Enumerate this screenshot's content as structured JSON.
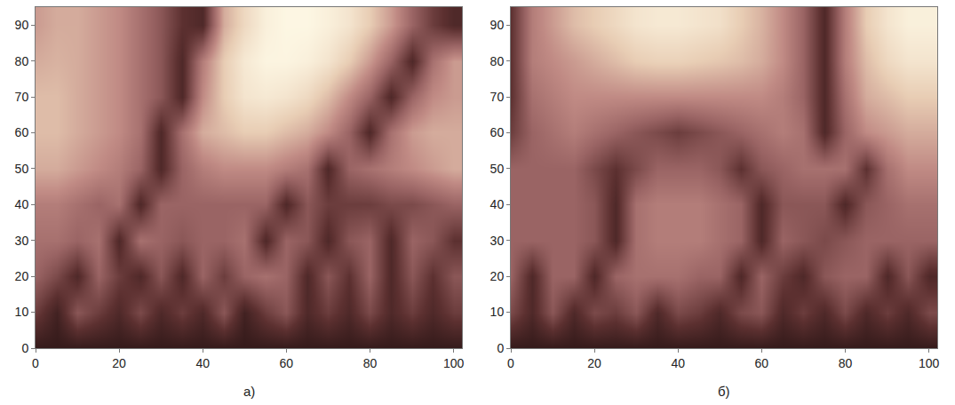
{
  "chart_data": [
    {
      "type": "heatmap",
      "title": "а)",
      "x": [
        0,
        5,
        10,
        15,
        20,
        25,
        30,
        35,
        40,
        45,
        50,
        55,
        60,
        65,
        70,
        75,
        80,
        85,
        90,
        95,
        100
      ],
      "y": [
        0,
        10,
        20,
        30,
        40,
        50,
        60,
        70,
        80,
        90
      ],
      "cells": [
        [
          0.1,
          0.1,
          0.1,
          0.1,
          0.1,
          0.1,
          0.1,
          0.1,
          0.1,
          0.1,
          0.1,
          0.1,
          0.1,
          0.1,
          0.1,
          0.1,
          0.1,
          0.1,
          0.1,
          0.1,
          0.1
        ],
        [
          0.3,
          0.15,
          0.4,
          0.3,
          0.2,
          0.35,
          0.2,
          0.3,
          0.2,
          0.4,
          0.15,
          0.3,
          0.4,
          0.2,
          0.3,
          0.2,
          0.35,
          0.2,
          0.3,
          0.2,
          0.3
        ],
        [
          0.45,
          0.35,
          0.2,
          0.45,
          0.3,
          0.2,
          0.4,
          0.2,
          0.45,
          0.3,
          0.45,
          0.5,
          0.45,
          0.2,
          0.4,
          0.25,
          0.45,
          0.2,
          0.4,
          0.25,
          0.4
        ],
        [
          0.5,
          0.5,
          0.45,
          0.5,
          0.2,
          0.5,
          0.45,
          0.4,
          0.45,
          0.45,
          0.5,
          0.2,
          0.45,
          0.4,
          0.2,
          0.4,
          0.45,
          0.2,
          0.45,
          0.4,
          0.25
        ],
        [
          0.55,
          0.55,
          0.5,
          0.45,
          0.5,
          0.2,
          0.45,
          0.45,
          0.45,
          0.45,
          0.45,
          0.45,
          0.2,
          0.4,
          0.3,
          0.3,
          0.3,
          0.35,
          0.35,
          0.4,
          0.45
        ],
        [
          0.7,
          0.7,
          0.65,
          0.6,
          0.55,
          0.45,
          0.2,
          0.45,
          0.55,
          0.6,
          0.6,
          0.6,
          0.55,
          0.5,
          0.2,
          0.45,
          0.5,
          0.55,
          0.6,
          0.65,
          0.7
        ],
        [
          0.75,
          0.75,
          0.7,
          0.65,
          0.6,
          0.5,
          0.2,
          0.5,
          0.7,
          0.75,
          0.8,
          0.8,
          0.75,
          0.7,
          0.6,
          0.45,
          0.2,
          0.5,
          0.65,
          0.7,
          0.7
        ],
        [
          0.75,
          0.75,
          0.7,
          0.65,
          0.6,
          0.5,
          0.4,
          0.2,
          0.6,
          0.8,
          0.9,
          0.92,
          0.9,
          0.85,
          0.75,
          0.6,
          0.45,
          0.2,
          0.45,
          0.6,
          0.65
        ],
        [
          0.7,
          0.72,
          0.7,
          0.65,
          0.6,
          0.5,
          0.4,
          0.2,
          0.55,
          0.8,
          0.92,
          0.97,
          0.97,
          0.95,
          0.9,
          0.8,
          0.65,
          0.45,
          0.2,
          0.5,
          0.65
        ],
        [
          0.65,
          0.7,
          0.7,
          0.65,
          0.6,
          0.5,
          0.4,
          0.25,
          0.2,
          0.7,
          0.85,
          0.95,
          0.98,
          0.98,
          0.95,
          0.9,
          0.8,
          0.65,
          0.45,
          0.3,
          0.2
        ]
      ],
      "zlim": [
        0,
        1
      ],
      "xlim": [
        0,
        102
      ],
      "ylim": [
        0,
        95
      ],
      "xticks": [
        0,
        20,
        40,
        60,
        80,
        100
      ],
      "yticks": [
        0,
        10,
        20,
        30,
        40,
        50,
        60,
        70,
        80,
        90
      ]
    },
    {
      "type": "heatmap",
      "title": "б)",
      "x": [
        0,
        5,
        10,
        15,
        20,
        25,
        30,
        35,
        40,
        45,
        50,
        55,
        60,
        65,
        70,
        75,
        80,
        85,
        90,
        95,
        100
      ],
      "y": [
        0,
        10,
        20,
        30,
        40,
        50,
        60,
        70,
        80,
        90
      ],
      "cells": [
        [
          0.1,
          0.1,
          0.1,
          0.1,
          0.1,
          0.1,
          0.1,
          0.1,
          0.1,
          0.1,
          0.1,
          0.1,
          0.1,
          0.1,
          0.1,
          0.1,
          0.1,
          0.1,
          0.1,
          0.1,
          0.1
        ],
        [
          0.35,
          0.2,
          0.4,
          0.2,
          0.35,
          0.3,
          0.4,
          0.2,
          0.35,
          0.3,
          0.2,
          0.35,
          0.4,
          0.2,
          0.3,
          0.2,
          0.35,
          0.2,
          0.3,
          0.2,
          0.35
        ],
        [
          0.45,
          0.2,
          0.45,
          0.45,
          0.2,
          0.45,
          0.5,
          0.5,
          0.5,
          0.45,
          0.45,
          0.2,
          0.45,
          0.3,
          0.2,
          0.4,
          0.45,
          0.45,
          0.2,
          0.4,
          0.2
        ],
        [
          0.45,
          0.45,
          0.45,
          0.45,
          0.4,
          0.2,
          0.5,
          0.55,
          0.55,
          0.55,
          0.5,
          0.45,
          0.2,
          0.45,
          0.4,
          0.35,
          0.4,
          0.45,
          0.45,
          0.45,
          0.45
        ],
        [
          0.45,
          0.45,
          0.45,
          0.45,
          0.4,
          0.2,
          0.5,
          0.55,
          0.55,
          0.55,
          0.5,
          0.45,
          0.2,
          0.4,
          0.4,
          0.4,
          0.2,
          0.4,
          0.45,
          0.5,
          0.5
        ],
        [
          0.45,
          0.45,
          0.45,
          0.45,
          0.35,
          0.25,
          0.35,
          0.45,
          0.45,
          0.45,
          0.4,
          0.25,
          0.4,
          0.45,
          0.5,
          0.5,
          0.5,
          0.25,
          0.5,
          0.6,
          0.6
        ],
        [
          0.3,
          0.45,
          0.5,
          0.55,
          0.5,
          0.45,
          0.4,
          0.35,
          0.3,
          0.35,
          0.4,
          0.45,
          0.5,
          0.55,
          0.5,
          0.2,
          0.45,
          0.6,
          0.65,
          0.7,
          0.7
        ],
        [
          0.25,
          0.5,
          0.55,
          0.6,
          0.6,
          0.6,
          0.6,
          0.6,
          0.6,
          0.6,
          0.6,
          0.6,
          0.6,
          0.55,
          0.45,
          0.2,
          0.5,
          0.7,
          0.75,
          0.8,
          0.8
        ],
        [
          0.25,
          0.55,
          0.6,
          0.65,
          0.7,
          0.75,
          0.8,
          0.82,
          0.82,
          0.8,
          0.78,
          0.75,
          0.7,
          0.6,
          0.45,
          0.2,
          0.55,
          0.75,
          0.85,
          0.9,
          0.9
        ],
        [
          0.25,
          0.55,
          0.65,
          0.75,
          0.8,
          0.85,
          0.9,
          0.92,
          0.92,
          0.9,
          0.88,
          0.8,
          0.72,
          0.6,
          0.45,
          0.2,
          0.55,
          0.8,
          0.9,
          0.95,
          0.95
        ]
      ],
      "zlim": [
        0,
        1
      ],
      "xlim": [
        0,
        102
      ],
      "ylim": [
        0,
        95
      ],
      "xticks": [
        0,
        20,
        40,
        60,
        80,
        100
      ],
      "yticks": [
        0,
        10,
        20,
        30,
        40,
        50,
        60,
        70,
        80,
        90
      ]
    }
  ]
}
